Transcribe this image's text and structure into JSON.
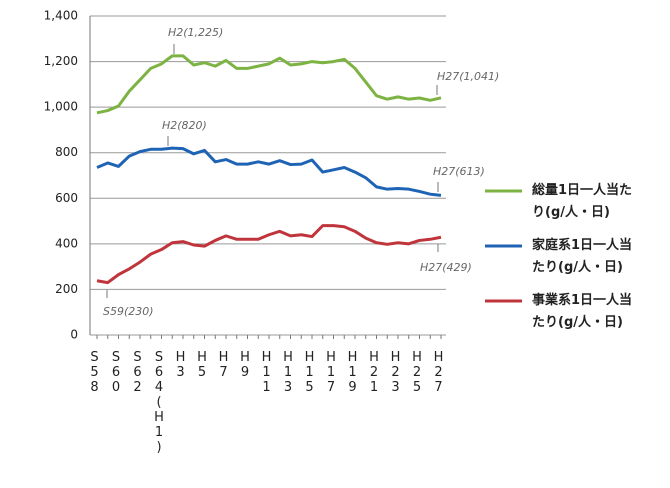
{
  "chart_data": {
    "type": "line",
    "categories": [
      "S58",
      null,
      "S60",
      null,
      "S62",
      null,
      "S64(H1)",
      null,
      "H3",
      null,
      "H5",
      null,
      "H7",
      null,
      "H9",
      null,
      "H11",
      null,
      "H13",
      null,
      "H15",
      null,
      "H17",
      null,
      "H19",
      null,
      "H21",
      null,
      "H23",
      null,
      "H25",
      null,
      "H27"
    ],
    "series": [
      {
        "name": "総量1日一人当たり(g/人・日)",
        "color": "#7cb342",
        "values": [
          975,
          985,
          1005,
          1070,
          1120,
          1170,
          1190,
          1225,
          1225,
          1185,
          1195,
          1180,
          1205,
          1170,
          1170,
          1180,
          1190,
          1215,
          1185,
          1190,
          1200,
          1195,
          1200,
          1210,
          1170,
          1110,
          1050,
          1035,
          1045,
          1035,
          1040,
          1030,
          1041
        ]
      },
      {
        "name": "家庭系1日一人当たり(g/人・日)",
        "color": "#1f63b5",
        "values": [
          735,
          755,
          740,
          785,
          805,
          815,
          815,
          820,
          818,
          795,
          810,
          760,
          770,
          750,
          750,
          760,
          750,
          765,
          748,
          750,
          768,
          715,
          725,
          735,
          715,
          690,
          650,
          640,
          643,
          640,
          630,
          618,
          613
        ]
      },
      {
        "name": "事業系1日一人当たり(g/人・日)",
        "color": "#c0343c",
        "values": [
          238,
          230,
          265,
          290,
          320,
          355,
          375,
          405,
          410,
          395,
          390,
          415,
          435,
          420,
          420,
          420,
          440,
          455,
          435,
          440,
          432,
          480,
          480,
          475,
          455,
          425,
          405,
          398,
          405,
          400,
          415,
          420,
          429
        ]
      }
    ],
    "ylim": [
      0,
      1400
    ],
    "yticks": [
      0,
      200,
      400,
      600,
      800,
      {
        "value": 1000,
        "label": "1,000"
      },
      {
        "value": 1200,
        "label": "1,200"
      },
      {
        "value": 1400,
        "label": "1,400"
      }
    ],
    "grid": true,
    "annotations": [
      "H2(1,225)",
      "H27(1,041)",
      "H2(820)",
      "H27(613)",
      "H27(429)",
      "S59(230)"
    ]
  }
}
